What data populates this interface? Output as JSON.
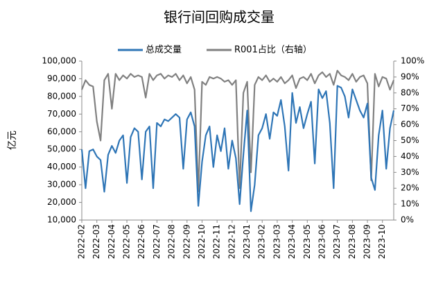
{
  "chart_data": {
    "type": "line",
    "title": "银行间回购成交量",
    "y_label": "亿元",
    "categories": [
      "2022-02",
      null,
      null,
      null,
      "2022-03",
      null,
      null,
      null,
      "2022-04",
      null,
      null,
      null,
      "2022-05",
      null,
      null,
      null,
      "2022-06",
      null,
      null,
      null,
      "2022-07",
      null,
      null,
      null,
      "2022-08",
      null,
      null,
      null,
      "2022-09",
      null,
      null,
      null,
      "2022-10",
      null,
      null,
      null,
      "2022-11",
      null,
      null,
      null,
      "2022-12",
      null,
      null,
      null,
      "2023-01",
      null,
      null,
      null,
      "2023-02",
      null,
      null,
      null,
      "2023-03",
      null,
      null,
      null,
      "2023-04",
      null,
      null,
      null,
      "2023-05",
      null,
      null,
      null,
      "2023-06",
      null,
      null,
      null,
      "2023-07",
      null,
      null,
      null,
      "2023-08",
      null,
      null,
      null,
      "2023-09",
      null,
      null,
      null,
      "2023-10",
      null,
      null,
      null
    ],
    "series": [
      {
        "name": "总成交量",
        "color": "#2e75b6",
        "axis": "y",
        "values": [
          50000,
          28000,
          49000,
          50000,
          46000,
          44000,
          26000,
          47000,
          52000,
          48000,
          55000,
          58000,
          31000,
          57000,
          62000,
          60000,
          33000,
          60000,
          63000,
          28000,
          65000,
          63000,
          67000,
          66000,
          68000,
          70000,
          68000,
          39000,
          67000,
          71000,
          63000,
          18000,
          43000,
          58000,
          63000,
          40000,
          58000,
          49000,
          62000,
          39000,
          55000,
          45000,
          19000,
          47000,
          72000,
          15000,
          30000,
          58000,
          62000,
          70000,
          56000,
          71000,
          69000,
          78000,
          63000,
          38000,
          82000,
          65000,
          74000,
          62000,
          70000,
          77000,
          42000,
          84000,
          79000,
          83000,
          65000,
          28000,
          86000,
          85000,
          80000,
          68000,
          84000,
          78000,
          72000,
          68000,
          76000,
          34000,
          27000,
          58000,
          72000,
          39000,
          62000,
          72000
        ]
      },
      {
        "name": "R001占比（右轴）",
        "color": "#808080",
        "axis": "y2",
        "values": [
          82,
          88,
          85,
          84,
          62,
          50,
          88,
          92,
          70,
          92,
          88,
          91,
          89,
          92,
          90,
          91,
          90,
          77,
          92,
          88,
          91,
          92,
          89,
          91,
          90,
          92,
          88,
          91,
          86,
          90,
          82,
          18,
          87,
          85,
          90,
          89,
          90,
          89,
          87,
          88,
          85,
          88,
          20,
          80,
          87,
          30,
          85,
          90,
          88,
          91,
          87,
          89,
          87,
          90,
          86,
          88,
          91,
          83,
          89,
          90,
          88,
          92,
          86,
          91,
          93,
          90,
          92,
          85,
          94,
          91,
          90,
          88,
          92,
          87,
          90,
          91,
          86,
          25,
          92,
          84,
          90,
          89,
          82,
          88
        ]
      }
    ],
    "ylim": [
      10000,
      100000
    ],
    "yticks": [
      {
        "value": 10000,
        "label": "10,000"
      },
      {
        "value": 20000,
        "label": "20,000"
      },
      {
        "value": 30000,
        "label": "30,000"
      },
      {
        "value": 40000,
        "label": "40,000"
      },
      {
        "value": 50000,
        "label": "50,000"
      },
      {
        "value": 60000,
        "label": "60,000"
      },
      {
        "value": 70000,
        "label": "70,000"
      },
      {
        "value": 80000,
        "label": "80,000"
      },
      {
        "value": 90000,
        "label": "90,000"
      },
      {
        "value": 100000,
        "label": "100,000"
      }
    ],
    "y2lim": [
      0,
      100
    ],
    "y2ticks": [
      {
        "value": 0,
        "label": "0%"
      },
      {
        "value": 10,
        "label": "10%"
      },
      {
        "value": 20,
        "label": "20%"
      },
      {
        "value": 30,
        "label": "30%"
      },
      {
        "value": 40,
        "label": "40%"
      },
      {
        "value": 50,
        "label": "50%"
      },
      {
        "value": 60,
        "label": "60%"
      },
      {
        "value": 70,
        "label": "70%"
      },
      {
        "value": 80,
        "label": "80%"
      },
      {
        "value": 90,
        "label": "90%"
      },
      {
        "value": 100,
        "label": "100%"
      }
    ]
  }
}
